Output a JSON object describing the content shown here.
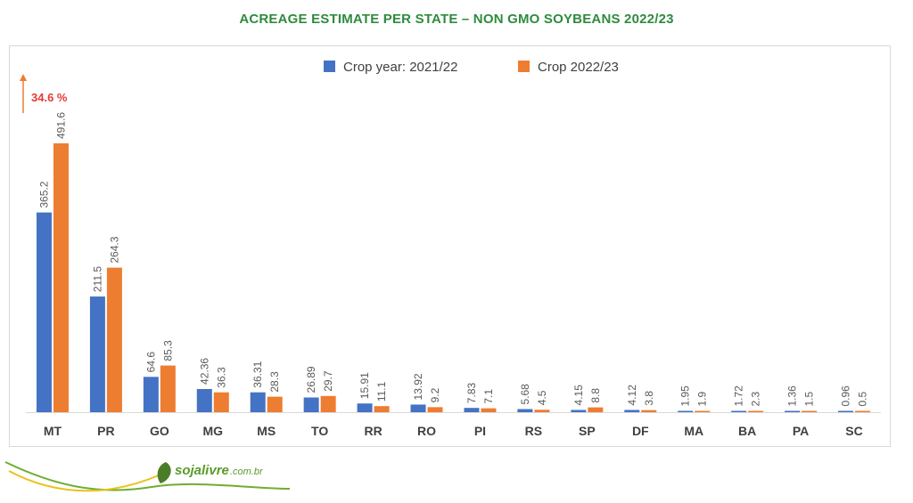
{
  "title": "ACREAGE ESTIMATE PER STATE – NON GMO SOYBEANS 2022/23",
  "annotation": "34.6 %",
  "logo_text": "sojalivre",
  "logo_suffix": ".com.br",
  "colors": {
    "series1": "#4472c4",
    "series2": "#ed7d31",
    "title": "#2e8b3e",
    "annotation": "#e53935",
    "label": "#595959"
  },
  "chart_data": {
    "type": "bar",
    "title": "ACREAGE ESTIMATE PER STATE – NON GMO SOYBEANS 2022/23",
    "categories": [
      "MT",
      "PR",
      "GO",
      "MG",
      "MS",
      "TO",
      "RR",
      "RO",
      "PI",
      "RS",
      "SP",
      "DF",
      "MA",
      "BA",
      "PA",
      "SC"
    ],
    "series": [
      {
        "name": "Crop year: 2021/22",
        "values": [
          365.2,
          211.5,
          64.6,
          42.36,
          36.31,
          26.89,
          15.91,
          13.92,
          7.83,
          5.68,
          4.15,
          4.12,
          1.95,
          1.72,
          1.36,
          0.96
        ]
      },
      {
        "name": "Crop 2022/23",
        "values": [
          491.6,
          264.3,
          85.3,
          36.3,
          28.3,
          29.7,
          11.1,
          9.2,
          7.1,
          4.5,
          8.8,
          3.8,
          1.9,
          2.3,
          1.5,
          0.5
        ]
      }
    ],
    "ylim": [
      0,
      491.6
    ],
    "legend": "top-center",
    "grid": false
  }
}
